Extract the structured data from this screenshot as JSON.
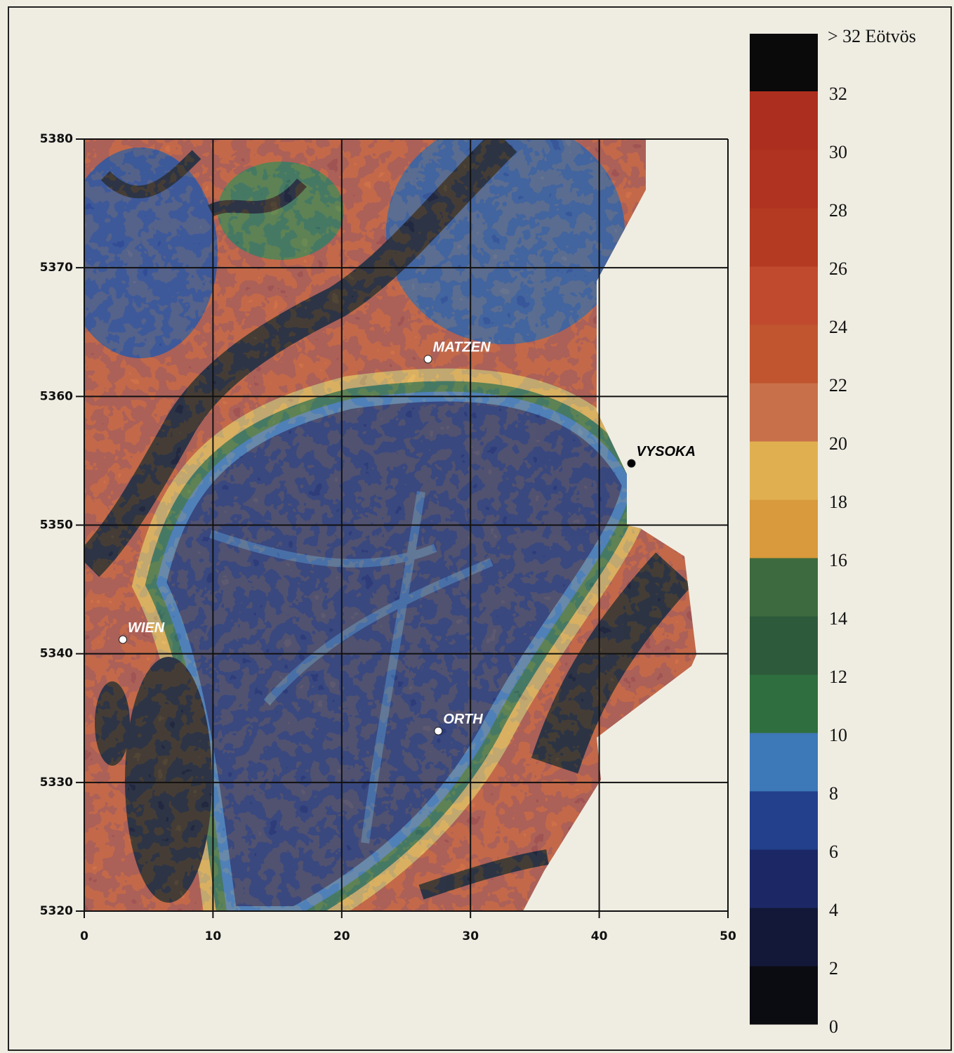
{
  "chart_data": {
    "type": "map",
    "xlim": [
      0,
      50
    ],
    "ylim": [
      5320,
      5380
    ],
    "xticks": [
      0,
      10,
      20,
      30,
      40,
      50
    ],
    "yticks": [
      5320,
      5330,
      5340,
      5350,
      5360,
      5370,
      5380
    ],
    "grid": true,
    "places": [
      {
        "name": "MATZEN",
        "x": 26.7,
        "y": 5362.9,
        "color": "#ffffff"
      },
      {
        "name": "VYSOKA",
        "x": 42.5,
        "y": 5354.8,
        "color": "#000000"
      },
      {
        "name": "WIEN",
        "x": 3.0,
        "y": 5341.1,
        "color": "#ffffff"
      },
      {
        "name": "ORTH",
        "x": 27.5,
        "y": 5334.0,
        "color": "#ffffff"
      }
    ],
    "colorbar": {
      "title": "> 32 Eötvös",
      "lim": [
        0,
        32
      ],
      "ticks": [
        0,
        2,
        4,
        6,
        8,
        10,
        12,
        14,
        16,
        18,
        20,
        22,
        24,
        26,
        28,
        30,
        32
      ],
      "colors": [
        "#0b0b12",
        "#141838",
        "#1c2866",
        "#22408c",
        "#3d78b8",
        "#2f6e3e",
        "#2d5a3a",
        "#3d6a3e",
        "#d89a3c",
        "#e0b050",
        "#c8704a",
        "#c05530",
        "#c04a2e",
        "#b43a22",
        "#b03220",
        "#ac2e1e"
      ],
      "over_color": "#0a0a0a"
    }
  }
}
